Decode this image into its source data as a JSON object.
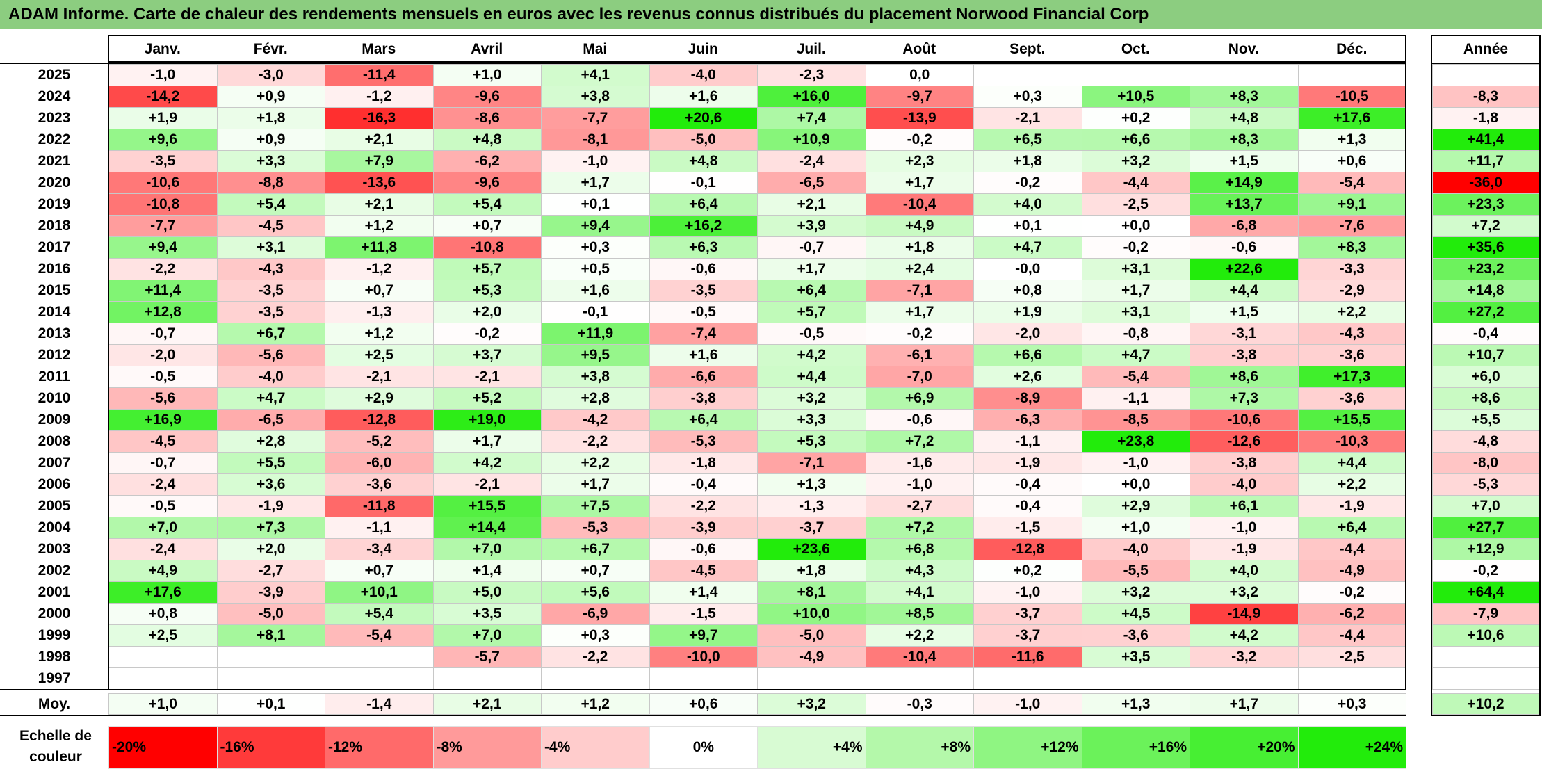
{
  "title": "ADAM Informe. Carte de chaleur des rendements mensuels en euros avec les revenus connus distribués du placement Norwood Financial Corp",
  "chart_data": {
    "type": "heatmap",
    "columns": [
      "Janv.",
      "Févr.",
      "Mars",
      "Avril",
      "Mai",
      "Juin",
      "Juil.",
      "Août",
      "Sept.",
      "Oct.",
      "Nov.",
      "Déc."
    ],
    "annual_header": "Année",
    "rows": [
      {
        "year": "2025",
        "values": [
          "-1,0",
          "-3,0",
          "-11,4",
          "+1,0",
          "+4,1",
          "-4,0",
          "-2,3",
          "0,0",
          "",
          "",
          "",
          ""
        ],
        "annual": ""
      },
      {
        "year": "2024",
        "values": [
          "-14,2",
          "+0,9",
          "-1,2",
          "-9,6",
          "+3,8",
          "+1,6",
          "+16,0",
          "-9,7",
          "+0,3",
          "+10,5",
          "+8,3",
          "-10,5"
        ],
        "annual": "-8,3"
      },
      {
        "year": "2023",
        "values": [
          "+1,9",
          "+1,8",
          "-16,3",
          "-8,6",
          "-7,7",
          "+20,6",
          "+7,4",
          "-13,9",
          "-2,1",
          "+0,2",
          "+4,8",
          "+17,6"
        ],
        "annual": "-1,8"
      },
      {
        "year": "2022",
        "values": [
          "+9,6",
          "+0,9",
          "+2,1",
          "+4,8",
          "-8,1",
          "-5,0",
          "+10,9",
          "-0,2",
          "+6,5",
          "+6,6",
          "+8,3",
          "+1,3"
        ],
        "annual": "+41,4"
      },
      {
        "year": "2021",
        "values": [
          "-3,5",
          "+3,3",
          "+7,9",
          "-6,2",
          "-1,0",
          "+4,8",
          "-2,4",
          "+2,3",
          "+1,8",
          "+3,2",
          "+1,5",
          "+0,6"
        ],
        "annual": "+11,7"
      },
      {
        "year": "2020",
        "values": [
          "-10,6",
          "-8,8",
          "-13,6",
          "-9,6",
          "+1,7",
          "-0,1",
          "-6,5",
          "+1,7",
          "-0,2",
          "-4,4",
          "+14,9",
          "-5,4"
        ],
        "annual": "-36,0"
      },
      {
        "year": "2019",
        "values": [
          "-10,8",
          "+5,4",
          "+2,1",
          "+5,4",
          "+0,1",
          "+6,4",
          "+2,1",
          "-10,4",
          "+4,0",
          "-2,5",
          "+13,7",
          "+9,1"
        ],
        "annual": "+23,3"
      },
      {
        "year": "2018",
        "values": [
          "-7,7",
          "-4,5",
          "+1,2",
          "+0,7",
          "+9,4",
          "+16,2",
          "+3,9",
          "+4,9",
          "+0,1",
          "+0,0",
          "-6,8",
          "-7,6"
        ],
        "annual": "+7,2"
      },
      {
        "year": "2017",
        "values": [
          "+9,4",
          "+3,1",
          "+11,8",
          "-10,8",
          "+0,3",
          "+6,3",
          "-0,7",
          "+1,8",
          "+4,7",
          "-0,2",
          "-0,6",
          "+8,3"
        ],
        "annual": "+35,6"
      },
      {
        "year": "2016",
        "values": [
          "-2,2",
          "-4,3",
          "-1,2",
          "+5,7",
          "+0,5",
          "-0,6",
          "+1,7",
          "+2,4",
          "-0,0",
          "+3,1",
          "+22,6",
          "-3,3"
        ],
        "annual": "+23,2"
      },
      {
        "year": "2015",
        "values": [
          "+11,4",
          "-3,5",
          "+0,7",
          "+5,3",
          "+1,6",
          "-3,5",
          "+6,4",
          "-7,1",
          "+0,8",
          "+1,7",
          "+4,4",
          "-2,9"
        ],
        "annual": "+14,8"
      },
      {
        "year": "2014",
        "values": [
          "+12,8",
          "-3,5",
          "-1,3",
          "+2,0",
          "-0,1",
          "-0,5",
          "+5,7",
          "+1,7",
          "+1,9",
          "+3,1",
          "+1,5",
          "+2,2"
        ],
        "annual": "+27,2"
      },
      {
        "year": "2013",
        "values": [
          "-0,7",
          "+6,7",
          "+1,2",
          "-0,2",
          "+11,9",
          "-7,4",
          "-0,5",
          "-0,2",
          "-2,0",
          "-0,8",
          "-3,1",
          "-4,3"
        ],
        "annual": "-0,4"
      },
      {
        "year": "2012",
        "values": [
          "-2,0",
          "-5,6",
          "+2,5",
          "+3,7",
          "+9,5",
          "+1,6",
          "+4,2",
          "-6,1",
          "+6,6",
          "+4,7",
          "-3,8",
          "-3,6"
        ],
        "annual": "+10,7"
      },
      {
        "year": "2011",
        "values": [
          "-0,5",
          "-4,0",
          "-2,1",
          "-2,1",
          "+3,8",
          "-6,6",
          "+4,4",
          "-7,0",
          "+2,6",
          "-5,4",
          "+8,6",
          "+17,3"
        ],
        "annual": "+6,0"
      },
      {
        "year": "2010",
        "values": [
          "-5,6",
          "+4,7",
          "+2,9",
          "+5,2",
          "+2,8",
          "-3,8",
          "+3,2",
          "+6,9",
          "-8,9",
          "-1,1",
          "+7,3",
          "-3,6"
        ],
        "annual": "+8,6"
      },
      {
        "year": "2009",
        "values": [
          "+16,9",
          "-6,5",
          "-12,8",
          "+19,0",
          "-4,2",
          "+6,4",
          "+3,3",
          "-0,6",
          "-6,3",
          "-8,5",
          "-10,6",
          "+15,5"
        ],
        "annual": "+5,5"
      },
      {
        "year": "2008",
        "values": [
          "-4,5",
          "+2,8",
          "-5,2",
          "+1,7",
          "-2,2",
          "-5,3",
          "+5,3",
          "+7,2",
          "-1,1",
          "+23,8",
          "-12,6",
          "-10,3"
        ],
        "annual": "-4,8"
      },
      {
        "year": "2007",
        "values": [
          "-0,7",
          "+5,5",
          "-6,0",
          "+4,2",
          "+2,2",
          "-1,8",
          "-7,1",
          "-1,6",
          "-1,9",
          "-1,0",
          "-3,8",
          "+4,4"
        ],
        "annual": "-8,0"
      },
      {
        "year": "2006",
        "values": [
          "-2,4",
          "+3,6",
          "-3,6",
          "-2,1",
          "+1,7",
          "-0,4",
          "+1,3",
          "-1,0",
          "-0,4",
          "+0,0",
          "-4,0",
          "+2,2"
        ],
        "annual": "-5,3"
      },
      {
        "year": "2005",
        "values": [
          "-0,5",
          "-1,9",
          "-11,8",
          "+15,5",
          "+7,5",
          "-2,2",
          "-1,3",
          "-2,7",
          "-0,4",
          "+2,9",
          "+6,1",
          "-1,9"
        ],
        "annual": "+7,0"
      },
      {
        "year": "2004",
        "values": [
          "+7,0",
          "+7,3",
          "-1,1",
          "+14,4",
          "-5,3",
          "-3,9",
          "-3,7",
          "+7,2",
          "-1,5",
          "+1,0",
          "-1,0",
          "+6,4"
        ],
        "annual": "+27,7"
      },
      {
        "year": "2003",
        "values": [
          "-2,4",
          "+2,0",
          "-3,4",
          "+7,0",
          "+6,7",
          "-0,6",
          "+23,6",
          "+6,8",
          "-12,8",
          "-4,0",
          "-1,9",
          "-4,4"
        ],
        "annual": "+12,9"
      },
      {
        "year": "2002",
        "values": [
          "+4,9",
          "-2,7",
          "+0,7",
          "+1,4",
          "+0,7",
          "-4,5",
          "+1,8",
          "+4,3",
          "+0,2",
          "-5,5",
          "+4,0",
          "-4,9"
        ],
        "annual": "-0,2"
      },
      {
        "year": "2001",
        "values": [
          "+17,6",
          "-3,9",
          "+10,1",
          "+5,0",
          "+5,6",
          "+1,4",
          "+8,1",
          "+4,1",
          "-1,0",
          "+3,2",
          "+3,2",
          "-0,2"
        ],
        "annual": "+64,4"
      },
      {
        "year": "2000",
        "values": [
          "+0,8",
          "-5,0",
          "+5,4",
          "+3,5",
          "-6,9",
          "-1,5",
          "+10,0",
          "+8,5",
          "-3,7",
          "+4,5",
          "-14,9",
          "-6,2"
        ],
        "annual": "-7,9"
      },
      {
        "year": "1999",
        "values": [
          "+2,5",
          "+8,1",
          "-5,4",
          "+7,0",
          "+0,3",
          "+9,7",
          "-5,0",
          "+2,2",
          "-3,7",
          "-3,6",
          "+4,2",
          "-4,4"
        ],
        "annual": "+10,6"
      },
      {
        "year": "1998",
        "values": [
          "",
          "",
          "",
          "-5,7",
          "-2,2",
          "-10,0",
          "-4,9",
          "-10,4",
          "-11,6",
          "+3,5",
          "-3,2",
          "-2,5"
        ],
        "annual": ""
      },
      {
        "year": "1997",
        "values": [
          "",
          "",
          "",
          "",
          "",
          "",
          "",
          "",
          "",
          "",
          "",
          ""
        ],
        "annual": ""
      }
    ],
    "average": {
      "label": "Moy.",
      "values": [
        "+1,0",
        "+0,1",
        "-1,4",
        "+2,1",
        "+1,2",
        "+0,6",
        "+3,2",
        "-0,3",
        "-1,0",
        "+1,3",
        "+1,7",
        "+0,3"
      ],
      "annual": "+10,2"
    },
    "legend": {
      "label": "Echelle de couleur",
      "steps": [
        {
          "text": "-20%",
          "value": -20,
          "color": "#ff0000"
        },
        {
          "text": "-16%",
          "value": -16,
          "color": "#ff3a3a"
        },
        {
          "text": "-12%",
          "value": -12,
          "color": "#ff6a6a"
        },
        {
          "text": "-8%",
          "value": -8,
          "color": "#ff9a9a"
        },
        {
          "text": "-4%",
          "value": -4,
          "color": "#ffcccc"
        },
        {
          "text": "0%",
          "value": 0,
          "color": "#ffffff"
        },
        {
          "text": "+4%",
          "value": 4,
          "color": "#d8fbd3"
        },
        {
          "text": "+8%",
          "value": 8,
          "color": "#b4f8aa"
        },
        {
          "text": "+12%",
          "value": 12,
          "color": "#8ff582"
        },
        {
          "text": "+16%",
          "value": 16,
          "color": "#6bf25a"
        },
        {
          "text": "+20%",
          "value": 20,
          "color": "#47ef33"
        },
        {
          "text": "+24%",
          "value": 24,
          "color": "#22ec0b"
        }
      ]
    }
  }
}
